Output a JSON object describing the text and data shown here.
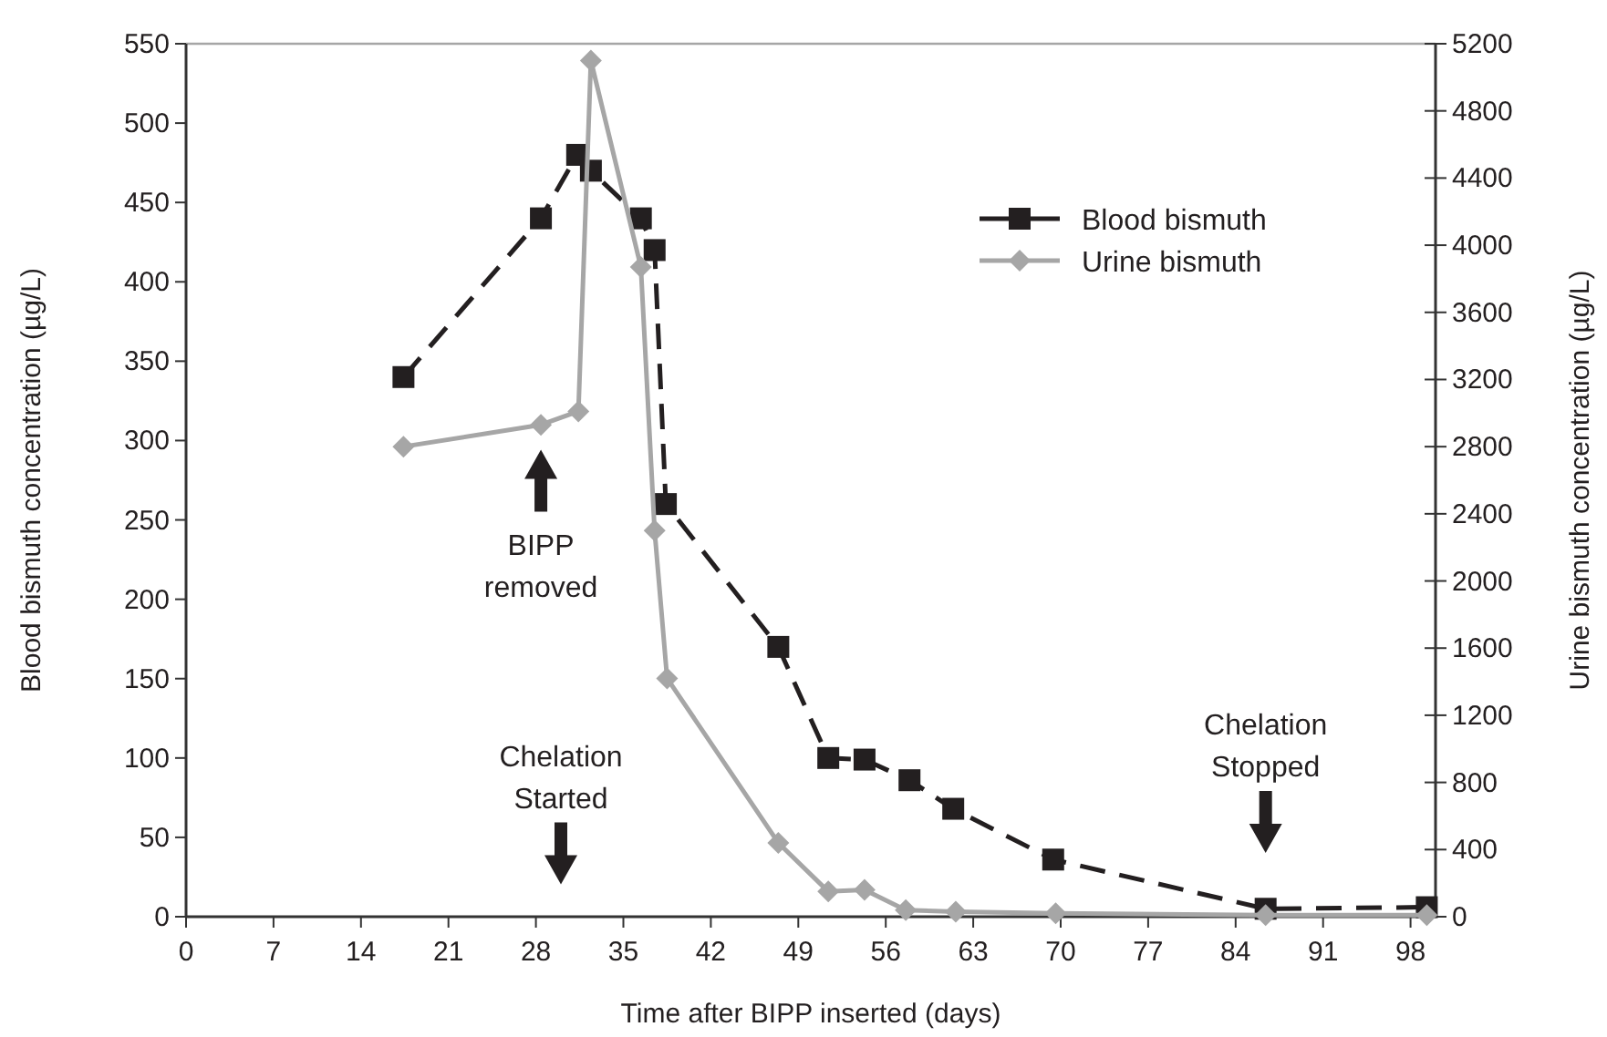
{
  "chart_data": {
    "type": "line",
    "xlabel": "Time after BIPP inserted (days)",
    "ylabel": "Blood bismuth concentration (µg/L)",
    "y2label": "Urine bismuth concentration (µg/L)",
    "xlim": [
      0,
      100
    ],
    "xticks": [
      0,
      7,
      14,
      21,
      28,
      35,
      42,
      49,
      56,
      63,
      70,
      77,
      84,
      91,
      98
    ],
    "ylim": [
      0,
      550
    ],
    "yticks": [
      0,
      50,
      100,
      150,
      200,
      250,
      300,
      350,
      400,
      450,
      500,
      550
    ],
    "y2lim": [
      0,
      5200
    ],
    "y2ticks": [
      0,
      400,
      800,
      1200,
      1600,
      2000,
      2400,
      2800,
      3200,
      3600,
      4000,
      4400,
      4800,
      5200
    ],
    "legend": "top right",
    "grid": false,
    "series": [
      {
        "name": "Blood bismuth",
        "color": "#231f20",
        "marker": "square",
        "line_style": "dashed",
        "x": [
          17.4,
          28.4,
          31.3,
          32.4,
          36.4,
          37.5,
          38.4,
          47.4,
          51.4,
          54.3,
          57.9,
          61.4,
          69.4,
          86.4,
          99.3
        ],
        "values": [
          340,
          440,
          480,
          470,
          440,
          420,
          260,
          170,
          100,
          99,
          86,
          68,
          36,
          5,
          6
        ]
      },
      {
        "name": "Urine bismuth",
        "color": "#a6a6a6",
        "marker": "diamond",
        "line_style": "solid",
        "axis": "y2",
        "x": [
          17.4,
          28.4,
          31.4,
          32.4,
          36.4,
          37.5,
          38.5,
          47.4,
          51.4,
          54.3,
          57.6,
          61.6,
          69.6,
          86.4,
          99.3
        ],
        "values": [
          2800,
          2930,
          3010,
          5100,
          3870,
          2300,
          1420,
          440,
          150,
          160,
          40,
          30,
          20,
          10,
          10
        ]
      }
    ],
    "annotations": [
      "BIPP\nremoved",
      "Chelation\nStarted",
      "Chelation\nStopped"
    ]
  }
}
